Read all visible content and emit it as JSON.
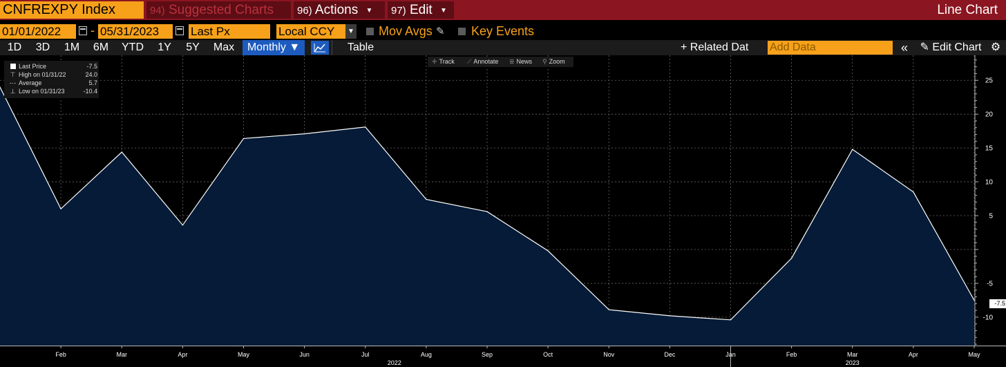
{
  "toolbar": {
    "ticker": "CNFREXPY Index",
    "suggested": {
      "num": "94)",
      "label": "Suggested Charts"
    },
    "actions": {
      "num": "96)",
      "label": "Actions"
    },
    "edit": {
      "num": "97)",
      "label": "Edit"
    },
    "chart_type": "Line Chart"
  },
  "params": {
    "start_date": "01/01/2022",
    "date_sep": "-",
    "end_date": "05/31/2023",
    "field": "Last Px",
    "currency": "Local CCY",
    "mov_avgs": "Mov Avgs",
    "key_events": "Key Events"
  },
  "range": {
    "buttons": [
      "1D",
      "3D",
      "1M",
      "6M",
      "YTD",
      "1Y",
      "5Y",
      "Max"
    ],
    "frequency": "Monthly ▼",
    "table": "Table",
    "related": "+ Related Dat",
    "add_data_placeholder": "Add Data",
    "collapse": "«",
    "edit_chart": "Edit Chart",
    "settings_icon": "gear-icon"
  },
  "legend": {
    "last_label": "Last Price",
    "last_value": "-7.5",
    "high_label": "High on 01/31/22",
    "high_value": "24.0",
    "avg_label": "Average",
    "avg_value": "5.7",
    "low_label": "Low on 01/31/23",
    "low_value": "-10.4"
  },
  "tools": [
    "Track",
    "Annotate",
    "News",
    "Zoom"
  ],
  "colors": {
    "accent": "#f7a11a",
    "topbar": "#8b1520",
    "area": "#051b37",
    "selected": "#1d5bbf"
  },
  "chart_data": {
    "type": "area",
    "x": [
      "2022-01",
      "2022-02",
      "2022-03",
      "2022-04",
      "2022-05",
      "2022-06",
      "2022-07",
      "2022-08",
      "2022-09",
      "2022-10",
      "2022-11",
      "2022-12",
      "2023-01",
      "2023-02",
      "2023-03",
      "2023-04",
      "2023-05"
    ],
    "series": [
      {
        "values": [
          24.0,
          6.0,
          14.4,
          3.6,
          16.4,
          17.1,
          18.1,
          7.4,
          5.6,
          -0.2,
          -8.9,
          -9.8,
          -10.4,
          -1.3,
          14.8,
          8.5,
          -7.5
        ]
      }
    ],
    "x_tick_labels": [
      "Feb",
      "Mar",
      "Apr",
      "May",
      "Jun",
      "Jul",
      "Aug",
      "Sep",
      "Oct",
      "Nov",
      "Dec",
      "Jan",
      "Feb",
      "Mar",
      "Apr",
      "May"
    ],
    "year_labels": [
      "2022",
      "2023"
    ],
    "y_ticks": [
      25,
      20,
      15,
      10,
      5,
      0,
      -5,
      -10
    ],
    "y_tick_labels": [
      "25",
      "20",
      "15",
      "10",
      "5",
      "",
      "-5",
      "-10"
    ],
    "ylim": [
      -14.2,
      28.7
    ],
    "last_value_label": "-7.5",
    "grid": true
  }
}
